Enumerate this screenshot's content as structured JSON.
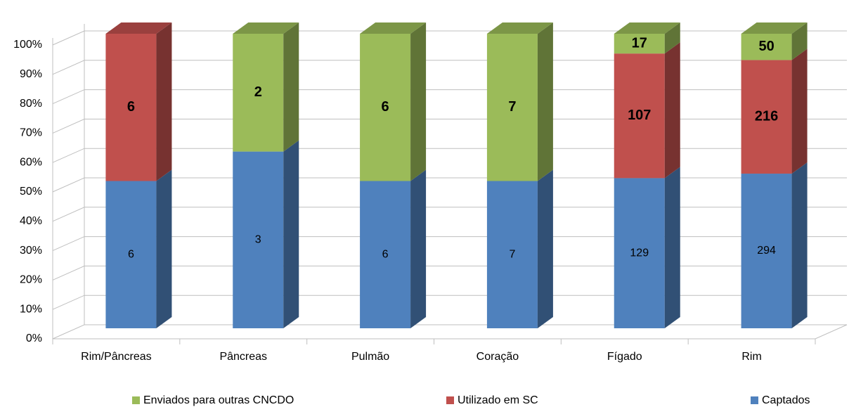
{
  "chart_data": {
    "type": "bar",
    "stacking": "percent",
    "categories": [
      "Rim/Pâncreas",
      "Pâncreas",
      "Pulmão",
      "Coração",
      "Fígado",
      "Rim"
    ],
    "series": [
      {
        "name": "Enviados para outras CNCDO",
        "color": "#9bbb59",
        "values": [
          null,
          2,
          6,
          7,
          17,
          50
        ]
      },
      {
        "name": "Utilizado em SC",
        "color": "#c0504d",
        "values": [
          6,
          null,
          null,
          null,
          107,
          216
        ]
      },
      {
        "name": "Captados",
        "color": "#4f81bd",
        "values": [
          6,
          3,
          6,
          7,
          129,
          294
        ]
      }
    ],
    "ylim": [
      0,
      100
    ],
    "yticks": [
      {
        "value": 0,
        "label": "0%"
      },
      {
        "value": 10,
        "label": "10%"
      },
      {
        "value": 20,
        "label": "20%"
      },
      {
        "value": 30,
        "label": "30%"
      },
      {
        "value": 40,
        "label": "40%"
      },
      {
        "value": 50,
        "label": "50%"
      },
      {
        "value": 60,
        "label": "60%"
      },
      {
        "value": 70,
        "label": "70%"
      },
      {
        "value": 80,
        "label": "80%"
      },
      {
        "value": 90,
        "label": "90%"
      },
      {
        "value": 100,
        "label": "100%"
      }
    ],
    "grid": true,
    "legend": "bottom"
  }
}
